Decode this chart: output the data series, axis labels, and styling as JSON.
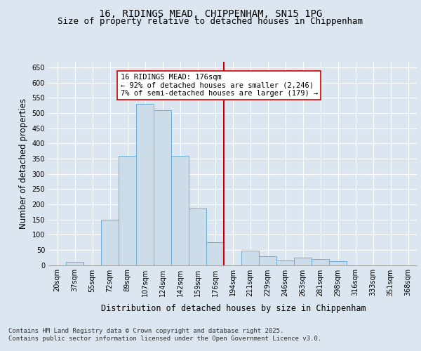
{
  "title_line1": "16, RIDINGS MEAD, CHIPPENHAM, SN15 1PG",
  "title_line2": "Size of property relative to detached houses in Chippenham",
  "xlabel": "Distribution of detached houses by size in Chippenham",
  "ylabel": "Number of detached properties",
  "footnote": "Contains HM Land Registry data © Crown copyright and database right 2025.\nContains public sector information licensed under the Open Government Licence v3.0.",
  "bin_labels": [
    "20sqm",
    "37sqm",
    "55sqm",
    "72sqm",
    "89sqm",
    "107sqm",
    "124sqm",
    "142sqm",
    "159sqm",
    "176sqm",
    "194sqm",
    "211sqm",
    "229sqm",
    "246sqm",
    "263sqm",
    "281sqm",
    "298sqm",
    "316sqm",
    "333sqm",
    "351sqm",
    "368sqm"
  ],
  "bar_values": [
    0,
    10,
    0,
    150,
    360,
    530,
    510,
    360,
    185,
    75,
    0,
    48,
    30,
    15,
    25,
    20,
    12,
    0,
    0,
    0,
    0
  ],
  "bar_color": "#ccdce8",
  "bar_edge_color": "#6aaed6",
  "vline_x_index": 9,
  "vline_color": "#cc0000",
  "annotation_text": "16 RIDINGS MEAD: 176sqm\n← 92% of detached houses are smaller (2,246)\n7% of semi-detached houses are larger (179) →",
  "annotation_box_color": "#ffffff",
  "annotation_box_edge": "#cc0000",
  "ylim": [
    0,
    670
  ],
  "yticks": [
    0,
    50,
    100,
    150,
    200,
    250,
    300,
    350,
    400,
    450,
    500,
    550,
    600,
    650
  ],
  "background_color": "#dce6f0",
  "plot_background": "#dce6f0",
  "title_fontsize": 10,
  "subtitle_fontsize": 9,
  "axis_label_fontsize": 8.5,
  "tick_fontsize": 7,
  "footnote_fontsize": 6.5,
  "ann_fontsize": 7.5
}
